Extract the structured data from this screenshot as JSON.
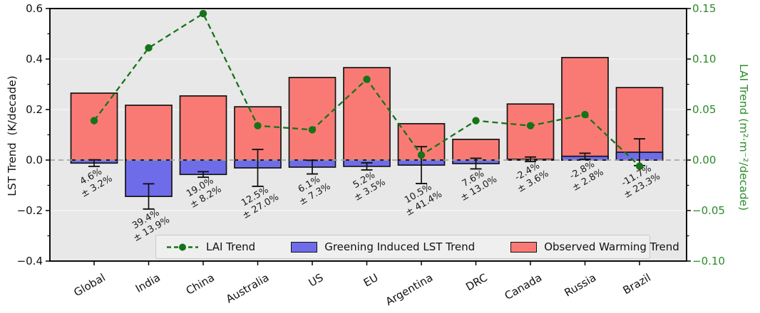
{
  "chart_data": {
    "type": "bar",
    "title": "",
    "categories": [
      "Global",
      "India",
      "China",
      "Australia",
      "US",
      "EU",
      "Argentina",
      "DRC",
      "Canada",
      "Russia",
      "Brazil"
    ],
    "series": [
      {
        "name": "Observed Warming Trend",
        "type": "bar",
        "axis": "left",
        "values": [
          0.265,
          0.217,
          0.254,
          0.211,
          0.327,
          0.366,
          0.144,
          0.082,
          0.222,
          0.406,
          0.287
        ]
      },
      {
        "name": "Greening Induced LST Trend",
        "type": "bar",
        "axis": "left",
        "values": [
          -0.012,
          -0.144,
          -0.057,
          -0.031,
          -0.028,
          -0.025,
          -0.02,
          -0.014,
          0.003,
          0.015,
          0.031
        ],
        "errors": [
          0.013,
          0.05,
          0.011,
          0.073,
          0.027,
          0.014,
          0.073,
          0.021,
          0.009,
          0.012,
          0.053
        ]
      },
      {
        "name": "LAI Trend",
        "type": "line",
        "axis": "right",
        "values": [
          0.039,
          0.111,
          0.145,
          0.034,
          0.03,
          0.08,
          0.005,
          0.039,
          0.034,
          0.045,
          -0.006
        ]
      }
    ],
    "bar_annotations": [
      {
        "line1": "4.6%",
        "line2": "± 3.2%"
      },
      {
        "line1": "39.4%",
        "line2": "± 13.9%"
      },
      {
        "line1": "19.0%",
        "line2": "± 8.2%"
      },
      {
        "line1": "12.5%",
        "line2": "± 27.0%"
      },
      {
        "line1": "6.1%",
        "line2": "± 7.3%"
      },
      {
        "line1": "5.2%",
        "line2": "± 3.5%"
      },
      {
        "line1": "10.5%",
        "line2": "± 41.4%"
      },
      {
        "line1": "7.6%",
        "line2": "± 13.0%"
      },
      {
        "line1": "-2.4%",
        "line2": "± 3.6%"
      },
      {
        "line1": "-2.8%",
        "line2": "± 2.8%"
      },
      {
        "line1": "-11.7%",
        "line2": "± 23.3%"
      }
    ],
    "left_axis": {
      "label": "LST Trend  (K/decade)",
      "range": [
        -0.4,
        0.6
      ],
      "major_ticks": [
        "0.6",
        "0.4",
        "0.2",
        "0.0",
        "−0.2",
        "−0.4"
      ],
      "minor_step": 0.1,
      "grid": true
    },
    "right_axis": {
      "label": "LAI Trend (m²·m⁻²/decade)",
      "range": [
        -0.1,
        0.15
      ],
      "major_ticks": [
        "0.15",
        "0.10",
        "0.05",
        "0.00",
        "−0.05",
        "−0.10"
      ],
      "minor_step": 0.025,
      "grid": false
    },
    "legend": [
      "LAI Trend",
      "Greening Induced LST Trend",
      "Observed Warming Trend"
    ],
    "legend_position": "lower center",
    "colors": {
      "observed_bar": "#f97a75",
      "greening_bar": "#6f6cea",
      "bar_edge": "#141414",
      "lai_line": "#177317",
      "right_axis_text": "#2a8b2a",
      "plot_background": "#e8e8e8",
      "gridline": "#f6f6f6",
      "zero_line": "#a6a6a6",
      "error_bar": "#111111"
    }
  }
}
